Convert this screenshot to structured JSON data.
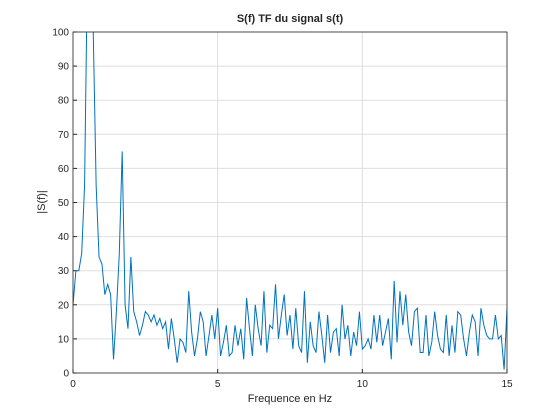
{
  "chart_data": {
    "type": "line",
    "title": "S(f) TF du signal s(t)",
    "xlabel": "Frequence en Hz",
    "ylabel": "|S(f)|",
    "x": [
      0,
      0.1,
      0.2,
      0.3,
      0.4,
      0.5,
      0.6,
      0.7,
      0.8,
      0.9,
      1,
      1.1,
      1.2,
      1.3,
      1.4,
      1.5,
      1.6,
      1.7,
      1.8,
      1.9,
      2,
      2.1,
      2.2,
      2.3,
      2.4,
      2.5,
      2.6,
      2.7,
      2.8,
      2.9,
      3,
      3.1,
      3.2,
      3.3,
      3.4,
      3.5,
      3.6,
      3.7,
      3.8,
      3.9,
      4,
      4.1,
      4.2,
      4.3,
      4.4,
      4.5,
      4.6,
      4.7,
      4.8,
      4.9,
      5,
      5.1,
      5.2,
      5.3,
      5.4,
      5.5,
      5.6,
      5.7,
      5.8,
      5.9,
      6,
      6.1,
      6.2,
      6.3,
      6.4,
      6.5,
      6.6,
      6.7,
      6.8,
      6.9,
      7,
      7.1,
      7.2,
      7.3,
      7.4,
      7.5,
      7.6,
      7.7,
      7.8,
      7.9,
      8,
      8.1,
      8.2,
      8.3,
      8.4,
      8.5,
      8.6,
      8.7,
      8.8,
      8.9,
      9,
      9.1,
      9.2,
      9.3,
      9.4,
      9.5,
      9.6,
      9.7,
      9.8,
      9.9,
      10,
      10.1,
      10.2,
      10.3,
      10.4,
      10.5,
      10.6,
      10.7,
      10.8,
      10.9,
      11,
      11.1,
      11.2,
      11.3,
      11.4,
      11.5,
      11.6,
      11.7,
      11.8,
      11.9,
      12,
      12.1,
      12.2,
      12.3,
      12.4,
      12.5,
      12.6,
      12.7,
      12.8,
      12.9,
      13,
      13.1,
      13.2,
      13.3,
      13.4,
      13.5,
      13.6,
      13.7,
      13.8,
      13.9,
      14,
      14.1,
      14.2,
      14.3,
      14.4,
      14.5,
      14.6,
      14.7,
      14.8,
      14.9,
      15
    ],
    "series": [
      {
        "name": "|S(f)|",
        "color": "#0072bd",
        "values": [
          20,
          30,
          30,
          35,
          55,
          120,
          160,
          100,
          55,
          34,
          32,
          23,
          26,
          23,
          4,
          18,
          35,
          65,
          20,
          13,
          34,
          18,
          15,
          11,
          14,
          18,
          17,
          15,
          17,
          14,
          16,
          13,
          15,
          7,
          16,
          10,
          3,
          10,
          9,
          6,
          24,
          12,
          5,
          10,
          18,
          15,
          5,
          11,
          17,
          10,
          19,
          5,
          9,
          14,
          5,
          6,
          14,
          8,
          13,
          4,
          22,
          13,
          5,
          20,
          13,
          8,
          24,
          6,
          14,
          13,
          26,
          10,
          17,
          23,
          11,
          17,
          7,
          19,
          8,
          6,
          24,
          3,
          15,
          8,
          6,
          18,
          11,
          3,
          17,
          6,
          12,
          13,
          5,
          20,
          10,
          14,
          5,
          12,
          8,
          18,
          7,
          8,
          10,
          7,
          17,
          9,
          17,
          8,
          12,
          16,
          4,
          27,
          9,
          24,
          14,
          23,
          12,
          8,
          18,
          19,
          6,
          6,
          17,
          5,
          9,
          18,
          11,
          7,
          6,
          17,
          5,
          14,
          6,
          18,
          17,
          10,
          5,
          12,
          17,
          15,
          5,
          19,
          14,
          11,
          10,
          10,
          17,
          10,
          11,
          1,
          19
        ]
      }
    ],
    "xlim": [
      0,
      15
    ],
    "ylim": [
      0,
      100
    ],
    "xticks": [
      0,
      5,
      10,
      15
    ],
    "yticks": [
      0,
      10,
      20,
      30,
      40,
      50,
      60,
      70,
      80,
      90,
      100
    ],
    "grid": true
  }
}
